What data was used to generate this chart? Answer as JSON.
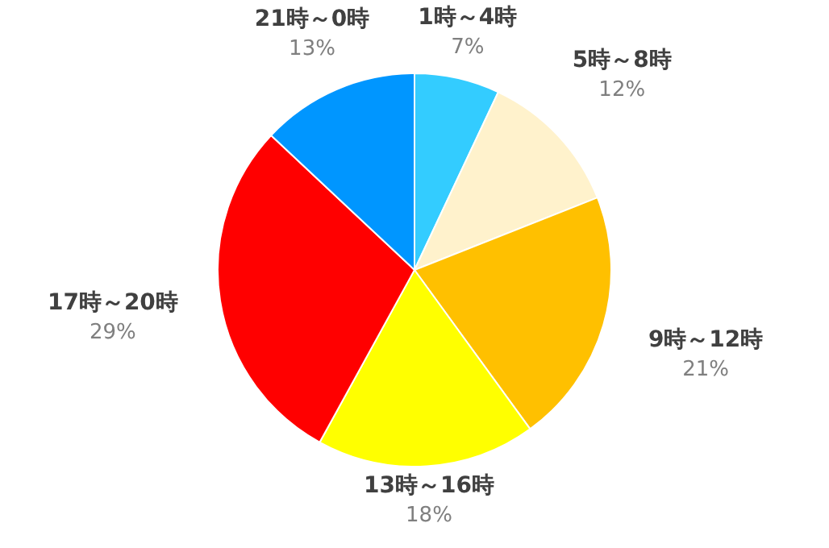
{
  "chart_data": {
    "type": "pie",
    "categories": [
      "1時～4時",
      "5時～8時",
      "9時～12時",
      "13時～16時",
      "17時～20時",
      "21時～0時"
    ],
    "values": [
      7,
      12,
      21,
      18,
      29,
      13
    ],
    "value_labels": [
      "7%",
      "12%",
      "21%",
      "18%",
      "29%",
      "13%"
    ],
    "colors": [
      "#33ccff",
      "#fff2cc",
      "#ffc000",
      "#ffff00",
      "#ff0000",
      "#0096ff"
    ],
    "legend": false
  }
}
